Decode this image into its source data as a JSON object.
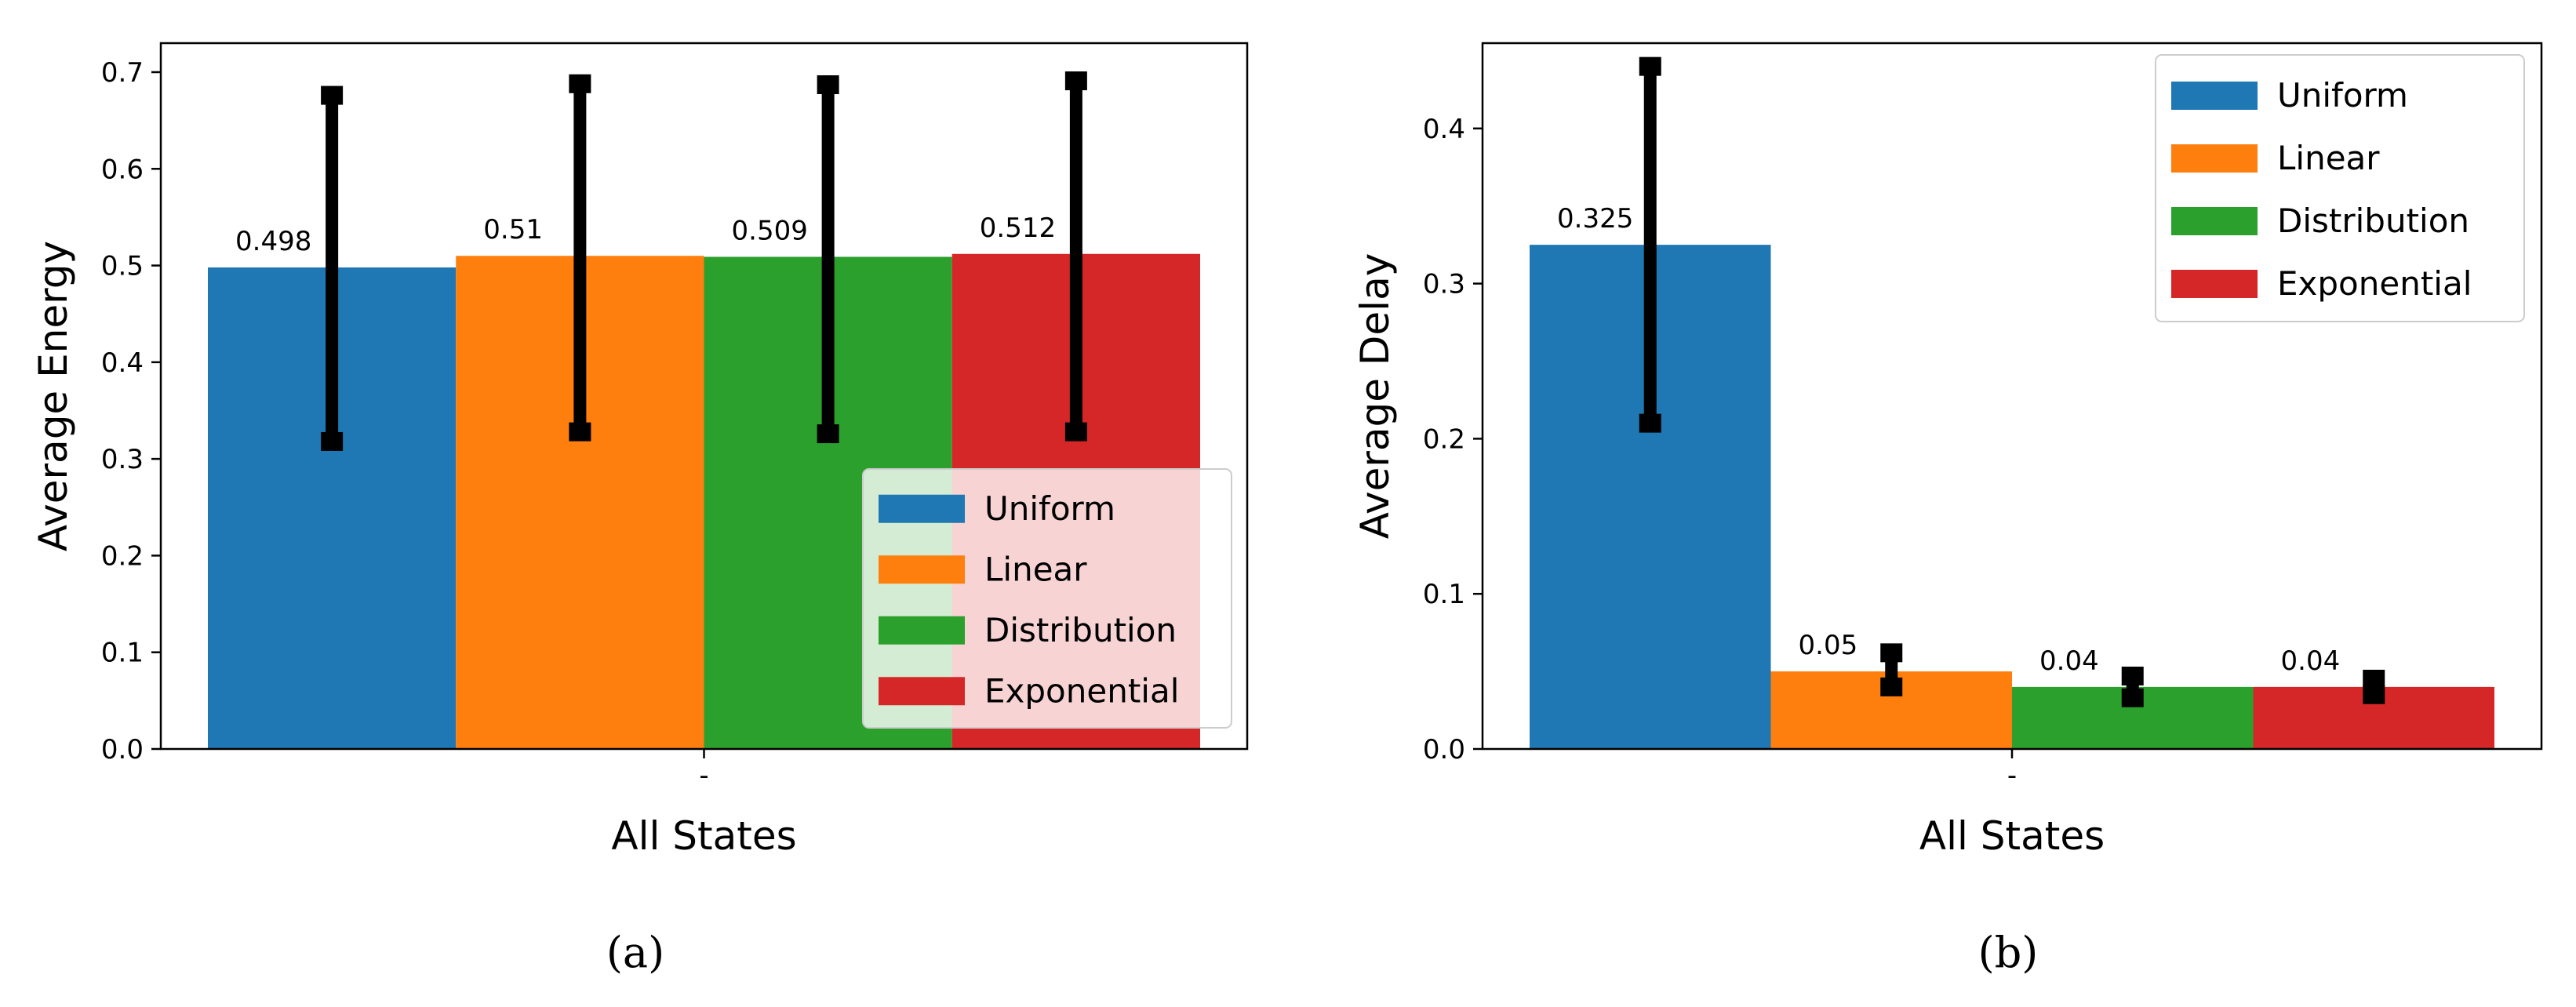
{
  "chart_data": [
    {
      "type": "bar",
      "panel_label": "(a)",
      "title": "",
      "xlabel": "All States",
      "ylabel": "Average Energy",
      "categories": [
        "-"
      ],
      "ylim": [
        0,
        0.73
      ],
      "yticks": [
        "0.0",
        "0.1",
        "0.2",
        "0.3",
        "0.4",
        "0.5",
        "0.6",
        "0.7"
      ],
      "grid": false,
      "legend_position": "lower-right",
      "series": [
        {
          "name": "Uniform",
          "color": "#1f77b4",
          "values": [
            0.498
          ],
          "label": "0.498",
          "error_low": [
            0.318
          ],
          "error_high": [
            0.676
          ]
        },
        {
          "name": "Linear",
          "color": "#ff7f0e",
          "values": [
            0.51
          ],
          "label": "0.51",
          "error_low": [
            0.328
          ],
          "error_high": [
            0.688
          ]
        },
        {
          "name": "Distribution",
          "color": "#2ca02c",
          "values": [
            0.509
          ],
          "label": "0.509",
          "error_low": [
            0.326
          ],
          "error_high": [
            0.687
          ]
        },
        {
          "name": "Exponential",
          "color": "#d62728",
          "values": [
            0.512
          ],
          "label": "0.512",
          "error_low": [
            0.328
          ],
          "error_high": [
            0.691
          ]
        }
      ]
    },
    {
      "type": "bar",
      "panel_label": "(b)",
      "title": "",
      "xlabel": "All States",
      "ylabel": "Average Delay",
      "categories": [
        "-"
      ],
      "ylim": [
        0,
        0.455
      ],
      "yticks": [
        "0.0",
        "0.1",
        "0.2",
        "0.3",
        "0.4"
      ],
      "grid": false,
      "legend_position": "upper-right",
      "series": [
        {
          "name": "Uniform",
          "color": "#1f77b4",
          "values": [
            0.325
          ],
          "label": "0.325",
          "error_low": [
            0.21
          ],
          "error_high": [
            0.44
          ]
        },
        {
          "name": "Linear",
          "color": "#ff7f0e",
          "values": [
            0.05
          ],
          "label": "0.05",
          "error_low": [
            0.04
          ],
          "error_high": [
            0.062
          ]
        },
        {
          "name": "Distribution",
          "color": "#2ca02c",
          "values": [
            0.04
          ],
          "label": "0.04",
          "error_low": [
            0.033
          ],
          "error_high": [
            0.047
          ]
        },
        {
          "name": "Exponential",
          "color": "#d62728",
          "values": [
            0.04
          ],
          "label": "0.04",
          "error_low": [
            0.035
          ],
          "error_high": [
            0.045
          ]
        }
      ]
    }
  ]
}
